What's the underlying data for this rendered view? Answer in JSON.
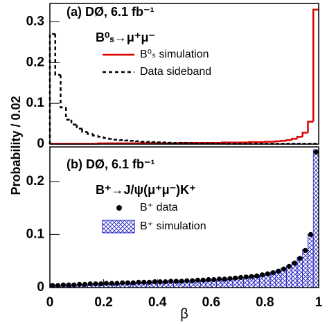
{
  "chart_data": [
    {
      "type": "histogram",
      "annotation": "(a)  DØ, 6.1 fb⁻¹",
      "legend_title": "B⁰ₛ→μ⁺μ⁻",
      "ylabel": "Probability / 0.02",
      "xlim": [
        0,
        1
      ],
      "ylim": [
        0,
        0.345
      ],
      "yticks": [
        0,
        0.1,
        0.2,
        0.3
      ],
      "bins": [
        0,
        0.02,
        0.04,
        0.06,
        0.08,
        0.1,
        0.12,
        0.14,
        0.16,
        0.18,
        0.2,
        0.22,
        0.24,
        0.26,
        0.28,
        0.3,
        0.32,
        0.34,
        0.36,
        0.38,
        0.4,
        0.42,
        0.44,
        0.46,
        0.48,
        0.5,
        0.52,
        0.54,
        0.56,
        0.58,
        0.6,
        0.62,
        0.64,
        0.66,
        0.68,
        0.7,
        0.72,
        0.74,
        0.76,
        0.78,
        0.8,
        0.82,
        0.84,
        0.86,
        0.88,
        0.9,
        0.92,
        0.94,
        0.96,
        0.98,
        1
      ],
      "series": [
        {
          "name": "B⁰ₛ simulation",
          "color": "#e00000",
          "style": "line",
          "values": [
            0.001,
            0.001,
            0.001,
            0.001,
            0.001,
            0.001,
            0.001,
            0.001,
            0.001,
            0.002,
            0.002,
            0.002,
            0.002,
            0.002,
            0.002,
            0.002,
            0.002,
            0.002,
            0.002,
            0.002,
            0.002,
            0.002,
            0.002,
            0.002,
            0.003,
            0.003,
            0.003,
            0.003,
            0.003,
            0.003,
            0.003,
            0.003,
            0.004,
            0.004,
            0.004,
            0.004,
            0.004,
            0.005,
            0.005,
            0.005,
            0.006,
            0.006,
            0.007,
            0.008,
            0.01,
            0.013,
            0.018,
            0.028,
            0.055,
            0.33
          ]
        },
        {
          "name": "Data sideband",
          "color": "#000000",
          "style": "dashed",
          "values": [
            0.27,
            0.17,
            0.09,
            0.06,
            0.048,
            0.038,
            0.03,
            0.025,
            0.021,
            0.018,
            0.015,
            0.013,
            0.011,
            0.01,
            0.009,
            0.008,
            0.007,
            0.006,
            0.0055,
            0.005,
            0.0045,
            0.004,
            0.0035,
            0.003,
            0.003,
            0.0025,
            0.0025,
            0.002,
            0.002,
            0.002,
            0.0015,
            0.0015,
            0.0015,
            0.001,
            0.001,
            0.001,
            0.001,
            0.001,
            0.001,
            0.001,
            0.001,
            0.001,
            0.001,
            0.001,
            0.001,
            0.001,
            0.001,
            0.001,
            0.001,
            0.001
          ]
        }
      ]
    },
    {
      "type": "histogram",
      "annotation": "(b)  DØ, 6.1 fb⁻¹",
      "legend_title": "B⁺→J/ψ(μ⁺μ⁻)K⁺",
      "xlabel": "β",
      "xlim": [
        0,
        1
      ],
      "xticks": [
        0,
        0.2,
        0.4,
        0.6,
        0.8,
        1
      ],
      "ylim": [
        0,
        0.265
      ],
      "yticks": [
        0,
        0.1,
        0.2
      ],
      "bins": [
        0,
        0.02,
        0.04,
        0.06,
        0.08,
        0.1,
        0.12,
        0.14,
        0.16,
        0.18,
        0.2,
        0.22,
        0.24,
        0.26,
        0.28,
        0.3,
        0.32,
        0.34,
        0.36,
        0.38,
        0.4,
        0.42,
        0.44,
        0.46,
        0.48,
        0.5,
        0.52,
        0.54,
        0.56,
        0.58,
        0.6,
        0.62,
        0.64,
        0.66,
        0.68,
        0.7,
        0.72,
        0.74,
        0.76,
        0.78,
        0.8,
        0.82,
        0.84,
        0.86,
        0.88,
        0.9,
        0.92,
        0.94,
        0.96,
        0.98,
        1
      ],
      "series": [
        {
          "name": "B⁺ data",
          "color": "#000000",
          "style": "points",
          "values": [
            0.004,
            0.004,
            0.005,
            0.005,
            0.005,
            0.006,
            0.006,
            0.007,
            0.007,
            0.007,
            0.008,
            0.008,
            0.008,
            0.009,
            0.009,
            0.009,
            0.01,
            0.01,
            0.01,
            0.011,
            0.011,
            0.011,
            0.012,
            0.012,
            0.012,
            0.013,
            0.013,
            0.014,
            0.014,
            0.015,
            0.015,
            0.016,
            0.016,
            0.017,
            0.018,
            0.019,
            0.02,
            0.021,
            0.022,
            0.024,
            0.026,
            0.028,
            0.031,
            0.035,
            0.04,
            0.046,
            0.055,
            0.07,
            0.1,
            0.255
          ]
        },
        {
          "name": "B⁺ simulation",
          "color": "#1f1fbf",
          "style": "hatched",
          "values": [
            0.003,
            0.004,
            0.004,
            0.005,
            0.005,
            0.005,
            0.006,
            0.006,
            0.007,
            0.007,
            0.007,
            0.008,
            0.008,
            0.008,
            0.009,
            0.009,
            0.009,
            0.01,
            0.01,
            0.011,
            0.011,
            0.011,
            0.012,
            0.012,
            0.013,
            0.013,
            0.013,
            0.014,
            0.014,
            0.015,
            0.015,
            0.016,
            0.017,
            0.017,
            0.018,
            0.019,
            0.02,
            0.021,
            0.023,
            0.024,
            0.026,
            0.029,
            0.032,
            0.036,
            0.041,
            0.048,
            0.057,
            0.072,
            0.1,
            0.26
          ]
        }
      ]
    }
  ]
}
